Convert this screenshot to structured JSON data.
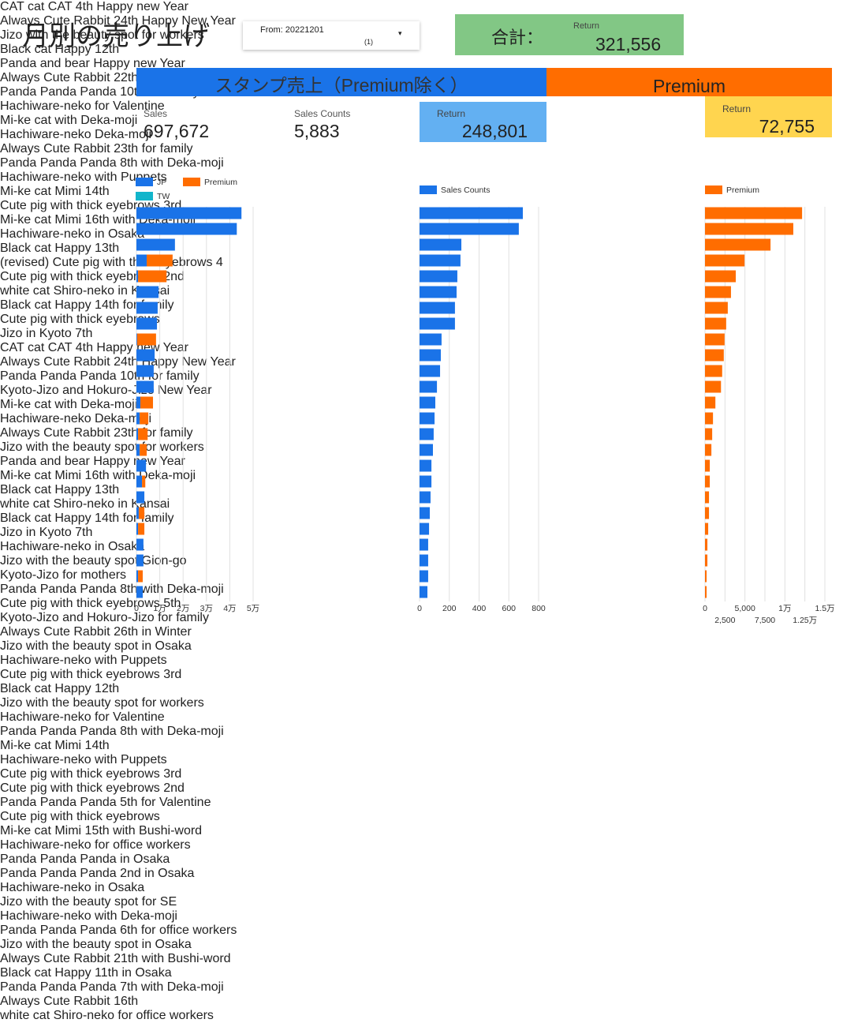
{
  "header": {
    "title": "月別の売り上げ",
    "filter": {
      "label": "From: 20221201",
      "count": "(1)"
    },
    "total": {
      "label": "合計：",
      "metric": "Return",
      "value": "321,556"
    }
  },
  "banners": [
    "スタンプ売上（Premium除く）",
    "Premium"
  ],
  "scorecards": [
    {
      "label": "Sales",
      "value": "697,672"
    },
    {
      "label": "Sales Counts",
      "value": "5,883"
    },
    {
      "label": "Return",
      "value": "248,801"
    },
    {
      "label": "Return",
      "value": "72,755"
    }
  ],
  "chart_data": [
    {
      "type": "bar",
      "orientation": "horizontal",
      "stacked": true,
      "grid": true,
      "categories": [
        "CAT cat CAT 4th Happy new Year",
        "Always Cute Rabbit 24th Happy New Year",
        null,
        "Jizo with the beauty spot for workers",
        "Black cat Happy 12th",
        "Panda and bear Happy new Year",
        "Always Cute Rabbit 22th with Deka-moji",
        "Panda Panda Panda 10th for family",
        "Hachiware-neko for Valentine",
        "Mi-ke cat with Deka-moji",
        "Hachiware-neko Deka-moji",
        "Always Cute Rabbit 23th for family",
        "Panda Panda Panda 8th with Deka-moji",
        "Hachiware-neko with Puppets",
        "Mi-ke cat Mimi 14th",
        "Cute pig with thick eyebrows 3rd",
        "Mi-ke cat Mimi 16th with Deka-moji",
        "Hachiware-neko in Osaka",
        "Black cat Happy 13th",
        "(revised) Cute pig with thick eyebrows 4",
        "Cute pig with thick eyebrows 2nd",
        "white cat Shiro-neko in Kansai",
        "Black cat Happy 14th for family",
        "Cute pig with thick eyebrows",
        "Jizo in Kyoto 7th"
      ],
      "series": [
        {
          "name": "JP",
          "color": "#1a73e8",
          "values": [
            45000,
            43000,
            16500,
            4400,
            700,
            9500,
            9100,
            8800,
            300,
            7800,
            7400,
            7400,
            1700,
            1400,
            700,
            1400,
            4100,
            2400,
            3400,
            1000,
            700,
            3000,
            3000,
            700,
            2700
          ]
        },
        {
          "name": "Premium",
          "color": "#ff6d00",
          "values": [
            0,
            0,
            0,
            11100,
            12200,
            0,
            0,
            0,
            8100,
            0,
            0,
            0,
            5400,
            3700,
            4100,
            3000,
            0,
            1400,
            0,
            2400,
            2700,
            0,
            0,
            2000,
            0
          ]
        },
        {
          "name": "TW",
          "color": "#12b5cb",
          "values": [
            0,
            0,
            0,
            0,
            0,
            0,
            0,
            0,
            0,
            0,
            0,
            0,
            0,
            0,
            0,
            0,
            0,
            0,
            0,
            0,
            0,
            0,
            0,
            0,
            0
          ]
        }
      ],
      "xlim": [
        0,
        50000
      ],
      "xticks": [
        0,
        {
          "value": 10000,
          "label": "1万"
        },
        {
          "value": 20000,
          "label": "2万"
        },
        {
          "value": 30000,
          "label": "3万"
        },
        {
          "value": 40000,
          "label": "4万"
        },
        {
          "value": 50000,
          "label": "5万"
        }
      ]
    },
    {
      "type": "bar",
      "orientation": "horizontal",
      "stacked": false,
      "grid": true,
      "categories": [
        "CAT cat CAT 4th Happy new Year",
        "Always Cute Rabbit 24th Happy New Year",
        null,
        "Panda Panda Panda 10th for family",
        "Kyoto-Jizo and Hokuro-Jizo New Year",
        "Mi-ke cat with Deka-moji",
        "Hachiware-neko Deka-moji",
        "Always Cute Rabbit 23th for family",
        "Jizo with the beauty spot for workers",
        "Panda and bear Happy new Year",
        "Mi-ke cat Mimi 16th with Deka-moji",
        "Black cat Happy 13th",
        "white cat Shiro-neko in Kansai",
        "Black cat Happy 14th for family",
        "Jizo in Kyoto 7th",
        "Hachiware-neko in Osaka",
        "Jizo with the beauty spot Gion-go",
        "Kyoto-Jizo for mothers",
        "Panda Panda Panda 8th with Deka-moji",
        "Cute pig with thick eyebrows 5th",
        "Kyoto-Jizo and Hokuro-Jizo for family",
        "Always Cute Rabbit 26th in Winter",
        "Jizo with the beauty spot in Osaka",
        "Hachiware-neko with Puppets",
        "Cute pig with thick eyebrows 3rd"
      ],
      "series": [
        {
          "name": "Sales Counts",
          "color": "#1a73e8",
          "values": [
            694,
            667,
            281,
            275,
            254,
            249,
            238,
            238,
            148,
            143,
            138,
            117,
            106,
            101,
            95,
            90,
            80,
            80,
            74,
            69,
            64,
            58,
            58,
            58,
            53
          ]
        }
      ],
      "xlim": [
        0,
        800
      ],
      "xticks": [
        0,
        200,
        400,
        600,
        800
      ]
    },
    {
      "type": "bar",
      "orientation": "horizontal",
      "stacked": false,
      "grid": true,
      "categories": [
        "Black cat Happy 12th",
        "Jizo with the beauty spot for workers",
        "Hachiware-neko for Valentine",
        "Panda Panda Panda 8th with Deka-moji",
        "Mi-ke cat Mimi 14th",
        "Hachiware-neko with Puppets",
        "Cute pig with thick eyebrows 3rd",
        "Cute pig with thick eyebrows 2nd",
        "Panda Panda Panda 5th for Valentine",
        "Cute pig with thick eyebrows",
        "Mi-ke cat Mimi 15th with Bushi-word",
        null,
        "Hachiware-neko for office workers",
        "Panda Panda Panda in Osaka",
        "Panda Panda Panda 2nd in Osaka",
        "Hachiware-neko in Osaka",
        "Jizo with the beauty spot for SE",
        "Hachiware-neko with Deka-moji",
        "Panda Panda Panda 6th for office workers",
        "Jizo with the beauty spot in Osaka",
        "Always Cute Rabbit 21th with Bushi-word",
        "Black cat Happy 11th in Osaka",
        "Panda Panda Panda 7th with Deka-moji",
        "Always Cute Rabbit 16th",
        "white cat Shiro-neko for office workers"
      ],
      "series": [
        {
          "name": "Premium",
          "color": "#ff6d00",
          "values": [
            12150,
            11050,
            8200,
            4950,
            3850,
            3250,
            2850,
            2650,
            2450,
            2350,
            2150,
            2000,
            1300,
            1000,
            900,
            800,
            600,
            600,
            500,
            500,
            400,
            300,
            300,
            200,
            200
          ]
        }
      ],
      "xlim": [
        0,
        15000
      ],
      "xticks": [
        0,
        {
          "value": 2500,
          "label": "2,500"
        },
        {
          "value": 5000,
          "label": "5,000"
        },
        {
          "value": 7500,
          "label": "7,500"
        },
        {
          "value": 10000,
          "label": "1万"
        },
        {
          "value": 12500,
          "label": "1.25万"
        },
        {
          "value": 15000,
          "label": "1.5万"
        }
      ]
    }
  ]
}
